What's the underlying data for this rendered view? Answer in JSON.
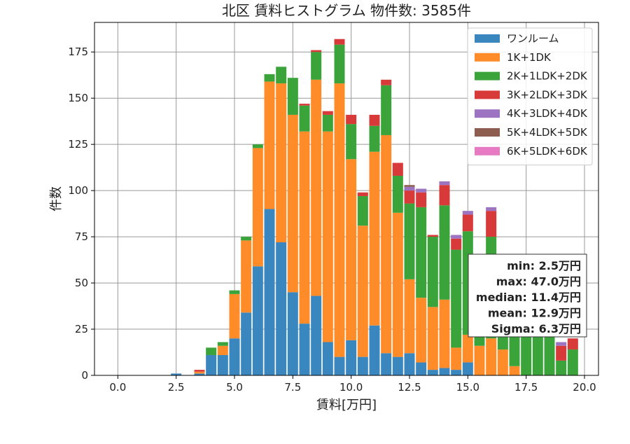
{
  "chart_data": {
    "type": "bar",
    "title": "北区 賃料ヒストグラム  物件数: 3585件",
    "xlabel": "賃料[万円]",
    "ylabel": "件数",
    "xlim": [
      -1.0,
      20.6
    ],
    "ylim": [
      0,
      191
    ],
    "xticks": [
      0,
      2.5,
      5,
      7.5,
      10,
      12.5,
      15,
      17.5,
      20
    ],
    "xtick_labels": [
      "0.0",
      "2.5",
      "5.0",
      "7.5",
      "10.0",
      "12.5",
      "15.0",
      "17.5",
      "20.0"
    ],
    "yticks": [
      0,
      25,
      50,
      75,
      100,
      125,
      150,
      175
    ],
    "ytick_labels": [
      "0",
      "25",
      "50",
      "75",
      "100",
      "125",
      "150",
      "175"
    ],
    "grid": true,
    "legend_position": "top-right",
    "stacked": true,
    "bin_width": 0.5,
    "x": [
      2.0,
      2.5,
      3.0,
      3.5,
      4.0,
      4.5,
      5.0,
      5.5,
      6.0,
      6.5,
      7.0,
      7.5,
      8.0,
      8.5,
      9.0,
      9.5,
      10.0,
      10.5,
      11.0,
      11.5,
      12.0,
      12.5,
      13.0,
      13.5,
      14.0,
      14.5,
      15.0,
      15.5,
      16.0,
      16.5,
      17.0,
      17.5,
      18.0,
      18.5,
      19.0,
      19.5
    ],
    "series": [
      {
        "name": "ワンルーム",
        "color": "#3a87c0",
        "values": [
          0,
          1,
          0,
          1,
          11,
          11,
          20,
          34,
          59,
          90,
          72,
          45,
          28,
          43,
          18,
          10,
          19,
          10,
          27,
          12,
          10,
          12,
          7,
          3,
          4,
          3,
          7,
          0,
          0,
          0,
          0,
          0,
          0,
          0,
          0,
          0
        ]
      },
      {
        "name": "1K+1DK",
        "color": "#ff8c28",
        "values": [
          0,
          0,
          0,
          1,
          0,
          5,
          24,
          39,
          64,
          69,
          86,
          96,
          104,
          117,
          114,
          148,
          98,
          71,
          94,
          118,
          78,
          40,
          35,
          34,
          37,
          12,
          15,
          16,
          20,
          14,
          5,
          0,
          0,
          0,
          0,
          0
        ]
      },
      {
        "name": "2K+1LDK+2DK",
        "color": "#3aa43a",
        "values": [
          0,
          0,
          0,
          0,
          4,
          2,
          2,
          2,
          2,
          4,
          9,
          20,
          14,
          15,
          9,
          21,
          19,
          16,
          14,
          27,
          20,
          41,
          49,
          38,
          51,
          53,
          56,
          12,
          55,
          48,
          34,
          33,
          34,
          36,
          8,
          14
        ]
      },
      {
        "name": "3K+2LDK+3DK",
        "color": "#d83a3a",
        "values": [
          0,
          0,
          0,
          1,
          0,
          0,
          0,
          0,
          0,
          0,
          0,
          0,
          1,
          1,
          2,
          3,
          5,
          2,
          6,
          3,
          7,
          7,
          8,
          1,
          11,
          6,
          9,
          7,
          14,
          0,
          0,
          0,
          0,
          0,
          8,
          6
        ]
      },
      {
        "name": "4K+3LDK+4DK",
        "color": "#9d74c2",
        "values": [
          0,
          0,
          0,
          0,
          0,
          0,
          0,
          0,
          0,
          0,
          0,
          0,
          0,
          0,
          0,
          0,
          0,
          0,
          0,
          0,
          0,
          2,
          2,
          0,
          2,
          2,
          2,
          0,
          2,
          0,
          0,
          0,
          0,
          0,
          2,
          0
        ]
      },
      {
        "name": "5K+4LDK+5DK",
        "color": "#8d5e4f",
        "values": [
          0,
          0,
          0,
          0,
          0,
          0,
          0,
          0,
          0,
          0,
          0,
          0,
          0,
          0,
          0,
          0,
          0,
          0,
          0,
          0,
          0,
          1,
          0,
          0,
          0,
          0,
          0,
          0,
          0,
          1,
          0,
          0,
          0,
          0,
          0,
          0
        ]
      },
      {
        "name": "6K+5LDK+6DK",
        "color": "#e67ac3",
        "values": [
          0,
          0,
          0,
          0,
          0,
          0,
          0,
          0,
          0,
          0,
          0,
          0,
          0,
          0,
          0,
          0,
          0,
          0,
          0,
          0,
          0,
          0,
          0,
          0,
          0,
          0,
          0,
          0,
          0,
          0,
          0,
          0,
          0,
          0,
          0,
          0
        ]
      }
    ],
    "stats": [
      "min: 2.5万円",
      "max: 47.0万円",
      "median: 11.4万円",
      "mean: 12.9万円",
      "Sigma: 6.3万円"
    ]
  }
}
